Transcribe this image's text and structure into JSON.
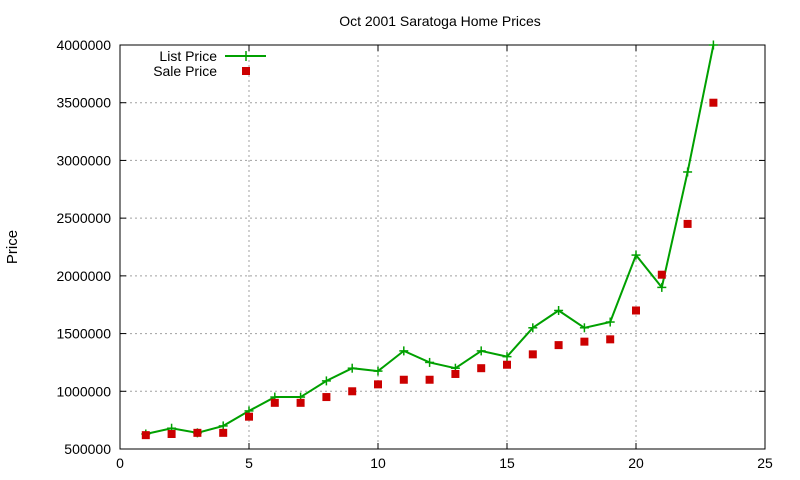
{
  "chart_data": {
    "type": "line",
    "title": "Oct 2001 Saratoga Home Prices",
    "xlabel": "",
    "ylabel": "Price",
    "xlim": [
      0,
      25
    ],
    "ylim": [
      500000,
      4000000
    ],
    "xticks": [
      0,
      5,
      10,
      15,
      20,
      25
    ],
    "yticks": [
      500000,
      1000000,
      1500000,
      2000000,
      2500000,
      3000000,
      3500000,
      4000000
    ],
    "grid": true,
    "legend_position": "top-left",
    "x": [
      1,
      2,
      3,
      4,
      5,
      6,
      7,
      8,
      9,
      10,
      11,
      12,
      13,
      14,
      15,
      16,
      17,
      18,
      19,
      20,
      21,
      22,
      23
    ],
    "series": [
      {
        "name": "List Price",
        "style": "line-plus",
        "color": "#00a000",
        "values": [
          630000,
          680000,
          640000,
          700000,
          830000,
          950000,
          950000,
          1090000,
          1200000,
          1175000,
          1350000,
          1250000,
          1200000,
          1350000,
          1300000,
          1550000,
          1700000,
          1550000,
          1600000,
          2180000,
          1900000,
          2900000,
          4000000
        ]
      },
      {
        "name": "Sale Price",
        "style": "square-marker",
        "color": "#cc0000",
        "values": [
          620000,
          630000,
          640000,
          640000,
          780000,
          900000,
          900000,
          950000,
          1000000,
          1060000,
          1100000,
          1100000,
          1150000,
          1200000,
          1230000,
          1320000,
          1400000,
          1430000,
          1450000,
          1700000,
          2010000,
          2450000,
          3500000
        ]
      }
    ]
  }
}
